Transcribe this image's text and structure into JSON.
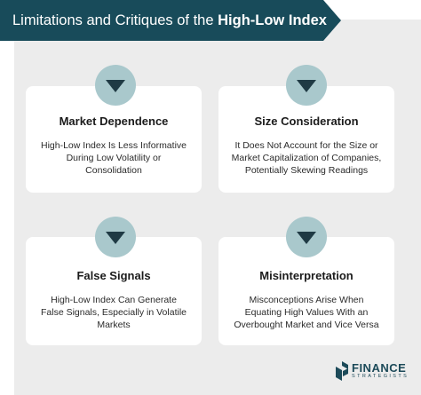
{
  "header": {
    "title_prefix": "Limitations and Critiques of the ",
    "title_bold": "High-Low Index"
  },
  "cards": [
    {
      "title": "Market Dependence",
      "description": "High-Low Index Is Less Informative During Low Volatility or Consolidation",
      "icon": "chevron-down-icon"
    },
    {
      "title": "Size Consideration",
      "description": "It Does Not Account for the Size or Market Capitalization of Companies, Potentially Skewing Readings",
      "icon": "chevron-down-icon"
    },
    {
      "title": "False Signals",
      "description": "High-Low Index Can Generate False Signals, Especially in Volatile Markets",
      "icon": "chevron-down-icon"
    },
    {
      "title": "Misinterpretation",
      "description": "Misconceptions Arise When Equating High Values With an Overbought Market and Vice Versa",
      "icon": "chevron-down-icon"
    }
  ],
  "logo": {
    "main": "FINANCE",
    "sub": "STRATEGISTS"
  },
  "colors": {
    "banner": "#184b5a",
    "badge": "#a9c8cc",
    "arrow": "#1f3a44",
    "panel": "#ececec"
  }
}
